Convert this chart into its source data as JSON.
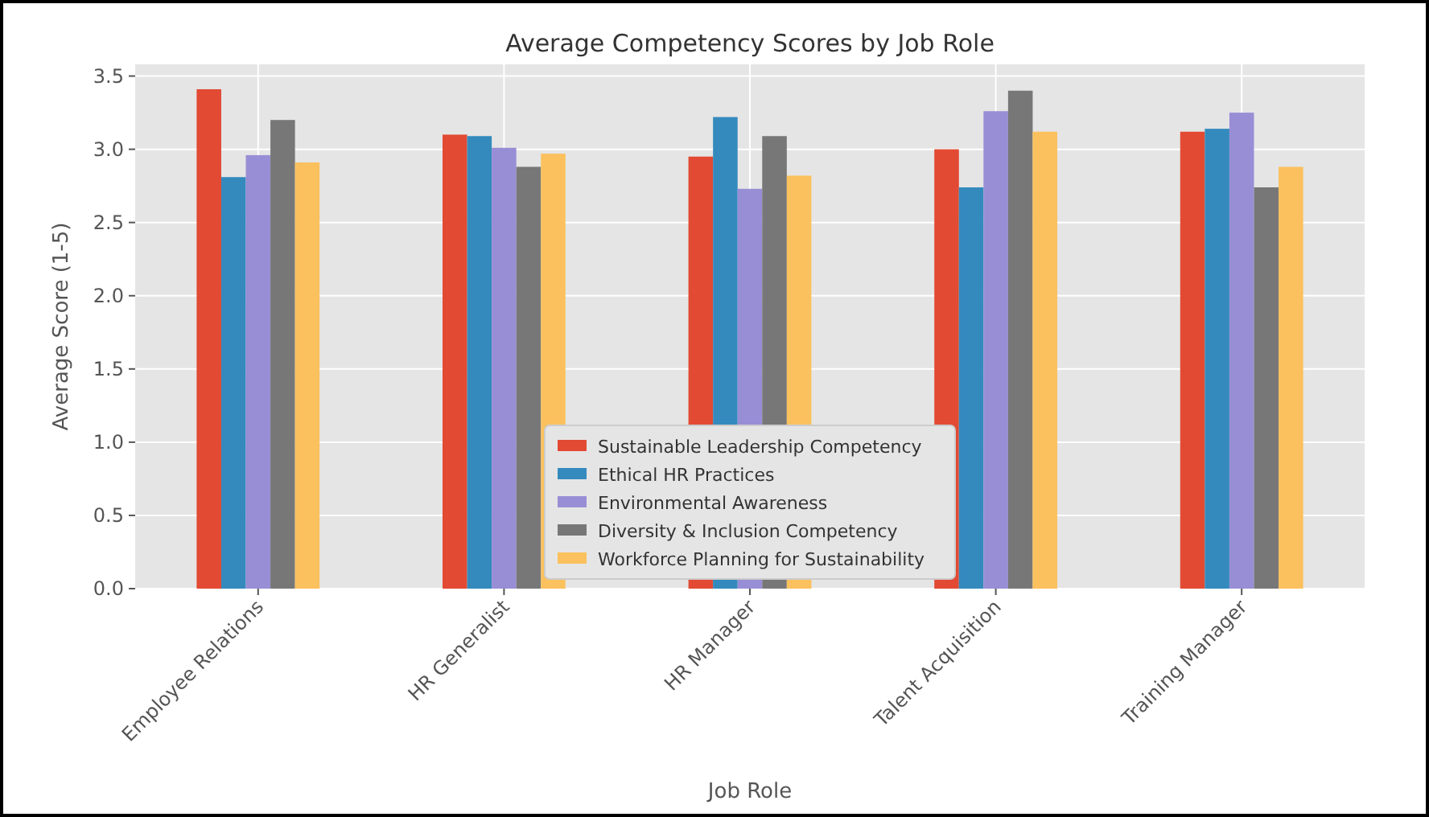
{
  "chart_data": {
    "type": "bar",
    "title": "Average Competency Scores by Job Role",
    "xlabel": "Job Role",
    "ylabel": "Average Score (1-5)",
    "categories": [
      "Employee Relations",
      "HR Generalist",
      "HR Manager",
      "Talent Acquisition",
      "Training Manager"
    ],
    "series": [
      {
        "name": "Sustainable Leadership Competency",
        "color": "#e24a33",
        "values": [
          3.41,
          3.1,
          2.95,
          3.0,
          3.12
        ]
      },
      {
        "name": "Ethical HR Practices",
        "color": "#348abd",
        "values": [
          2.81,
          3.09,
          3.22,
          2.74,
          3.14
        ]
      },
      {
        "name": "Environmental Awareness",
        "color": "#988ed5",
        "values": [
          2.96,
          3.01,
          2.73,
          3.26,
          3.25
        ]
      },
      {
        "name": "Diversity & Inclusion Competency",
        "color": "#777777",
        "values": [
          3.2,
          2.88,
          3.09,
          3.4,
          2.74
        ]
      },
      {
        "name": "Workforce Planning for Sustainability",
        "color": "#fbc15e",
        "values": [
          2.91,
          2.97,
          2.82,
          3.12,
          2.88
        ]
      }
    ],
    "ylim": [
      0,
      3.58
    ],
    "yticks": [
      {
        "value": 0,
        "label": "0.0"
      },
      {
        "value": 0.5,
        "label": "0.5"
      },
      {
        "value": 1,
        "label": "1.0"
      },
      {
        "value": 1.5,
        "label": "1.5"
      },
      {
        "value": 2,
        "label": "2.0"
      },
      {
        "value": 2.5,
        "label": "2.5"
      },
      {
        "value": 3,
        "label": "3.0"
      },
      {
        "value": 3.5,
        "label": "3.5"
      }
    ],
    "grid": true,
    "legend": "bottom"
  }
}
